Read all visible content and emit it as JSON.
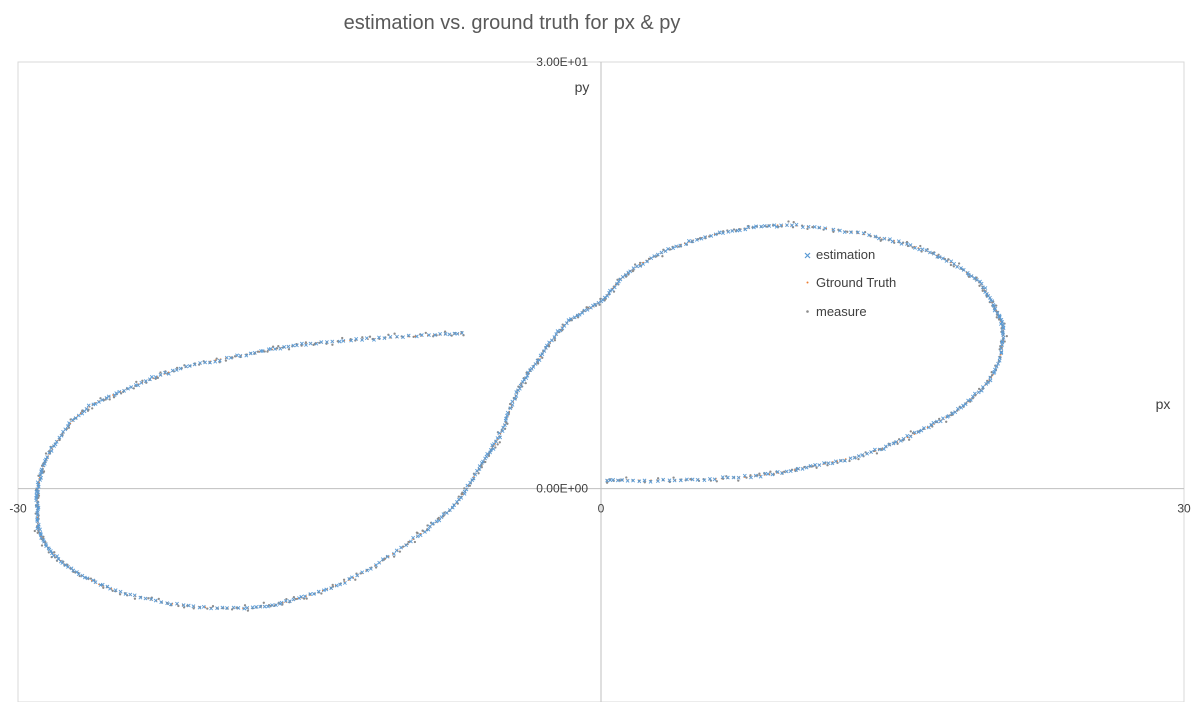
{
  "chart_data": {
    "type": "scatter",
    "title": "estimation vs. ground truth for px & py",
    "xlabel": "px",
    "ylabel": "py",
    "xlim": [
      -30,
      30
    ],
    "ylim": [
      -15,
      30
    ],
    "x_ticks": [
      {
        "value": -30,
        "label": "-30"
      },
      {
        "value": 0,
        "label": "0"
      },
      {
        "value": 30,
        "label": "30"
      }
    ],
    "y_ticks": [
      {
        "value": 0,
        "label": "0.00E+00"
      },
      {
        "value": 30,
        "label": "3.00E+01"
      }
    ],
    "legend": {
      "position": "right-center",
      "entries": [
        "estimation",
        "Gtround Truth",
        "measure"
      ]
    },
    "curve_waypoints": [
      [
        0.3,
        0.6
      ],
      [
        4,
        0.6
      ],
      [
        8,
        0.9
      ],
      [
        11,
        1.6
      ],
      [
        14,
        2.6
      ],
      [
        16.5,
        4.1
      ],
      [
        18.6,
        5.8
      ],
      [
        20.2,
        8.1
      ],
      [
        20.7,
        10.8
      ],
      [
        20.3,
        12.6
      ],
      [
        19.3,
        14.7
      ],
      [
        17.1,
        16.5
      ],
      [
        14.2,
        17.7
      ],
      [
        10,
        18.5
      ],
      [
        7,
        18.2
      ],
      [
        4,
        17.1
      ],
      [
        1.5,
        15.3
      ],
      [
        0,
        13.2
      ],
      [
        -1.8,
        11.6
      ],
      [
        -3.2,
        9.1
      ],
      [
        -4.3,
        6.8
      ],
      [
        -5.2,
        3.8
      ],
      [
        -6.2,
        1.6
      ],
      [
        -7.5,
        -1.1
      ],
      [
        -9.5,
        -3.4
      ],
      [
        -12.5,
        -6.1
      ],
      [
        -15.5,
        -7.7
      ],
      [
        -18.2,
        -8.4
      ],
      [
        -22,
        -8.1
      ],
      [
        -25.5,
        -6.9
      ],
      [
        -27.7,
        -5.2
      ],
      [
        -28.8,
        -3.4
      ],
      [
        -29,
        -1.4
      ],
      [
        -28.9,
        0.6
      ],
      [
        -28.2,
        2.9
      ],
      [
        -26.6,
        5.5
      ],
      [
        -24.2,
        7.1
      ],
      [
        -21.5,
        8.5
      ],
      [
        -18,
        9.5
      ],
      [
        -15,
        10.2
      ],
      [
        -11,
        10.6
      ],
      [
        -7.2,
        10.9
      ]
    ],
    "series": [
      {
        "name": "estimation",
        "color": "#5B9BD5",
        "marker": "x"
      },
      {
        "name": "Gtround Truth",
        "color": "#ED7D31",
        "marker": "dot"
      },
      {
        "name": "measure",
        "color": "#8C8C8C",
        "marker": "dot"
      }
    ]
  }
}
